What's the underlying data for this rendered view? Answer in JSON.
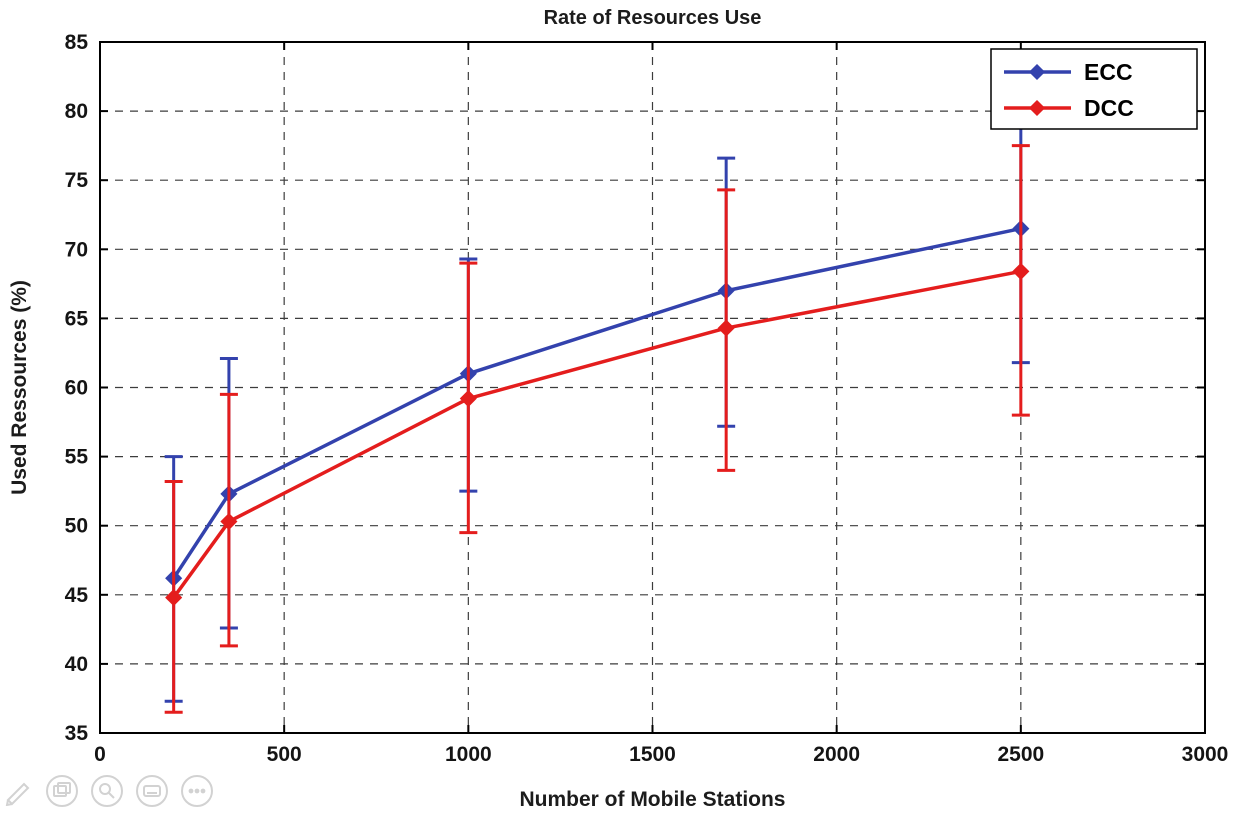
{
  "chart_data": {
    "type": "line",
    "title": "Rate of Resources Use",
    "xlabel": "Number of Mobile Stations",
    "ylabel": "Used Ressources (%)",
    "xlim": [
      0,
      3000
    ],
    "ylim": [
      35,
      85
    ],
    "xticks": [
      0,
      500,
      1000,
      1500,
      2000,
      2500,
      3000
    ],
    "yticks": [
      35,
      40,
      45,
      50,
      55,
      60,
      65,
      70,
      75,
      80,
      85
    ],
    "grid": true,
    "legend_position": "top-right",
    "marker": "diamond",
    "x": [
      200,
      350,
      1000,
      1700,
      2500
    ],
    "series": [
      {
        "name": "ECC",
        "color": "#3342ad",
        "values": [
          46.2,
          52.3,
          61.0,
          67.0,
          71.5
        ],
        "err_low": [
          37.3,
          42.6,
          52.5,
          57.2,
          61.8
        ],
        "err_high": [
          55.0,
          62.1,
          69.3,
          76.6,
          81.0
        ]
      },
      {
        "name": "DCC",
        "color": "#e41d1d",
        "values": [
          44.8,
          50.3,
          59.2,
          64.3,
          68.4
        ],
        "err_low": [
          36.5,
          41.3,
          49.5,
          54.0,
          58.0
        ],
        "err_high": [
          53.2,
          59.5,
          69.0,
          74.3,
          77.5
        ]
      }
    ]
  },
  "toolbar": {
    "icons": [
      "edit-icon",
      "copy-image-icon",
      "zoom-icon",
      "keyboard-icon",
      "more-icon"
    ]
  }
}
